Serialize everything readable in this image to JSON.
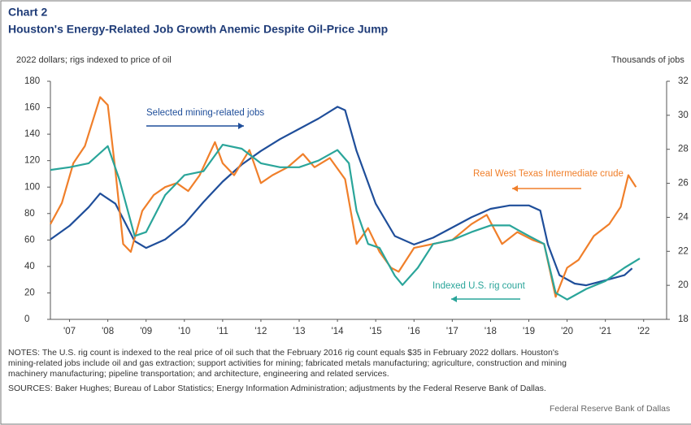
{
  "chart_data": {
    "type": "line",
    "header": "Chart 2",
    "title": "Houston's Energy-Related Job Growth Anemic Despite Oil-Price Jump",
    "ylabel": "2022 dollars; rigs indexed to price of oil",
    "y2label": "Thousands of jobs",
    "xlim": [
      2007,
      2023.1
    ],
    "xticks": [
      {
        "value": 2007.5,
        "label": "'07"
      },
      {
        "value": 2008.5,
        "label": "'08"
      },
      {
        "value": 2009.5,
        "label": "'09"
      },
      {
        "value": 2010.5,
        "label": "'10"
      },
      {
        "value": 2011.5,
        "label": "'11"
      },
      {
        "value": 2012.5,
        "label": "'12"
      },
      {
        "value": 2013.5,
        "label": "'13"
      },
      {
        "value": 2014.5,
        "label": "'14"
      },
      {
        "value": 2015.5,
        "label": "'15"
      },
      {
        "value": 2016.5,
        "label": "'16"
      },
      {
        "value": 2017.5,
        "label": "'17"
      },
      {
        "value": 2018.5,
        "label": "'18"
      },
      {
        "value": 2019.5,
        "label": "'19"
      },
      {
        "value": 2020.5,
        "label": "'20"
      },
      {
        "value": 2021.5,
        "label": "'21"
      },
      {
        "value": 2022.5,
        "label": "'22"
      }
    ],
    "ylim": [
      0,
      180
    ],
    "yticks": [
      0,
      20,
      40,
      60,
      80,
      100,
      120,
      140,
      160,
      180
    ],
    "y2lim": [
      18,
      32
    ],
    "y2ticks": [
      18,
      20,
      22,
      24,
      26,
      28,
      30,
      32
    ],
    "series": [
      {
        "name": "Selected mining-related jobs",
        "color": "#1f4e9a",
        "axis": "y2",
        "x": [
          2007,
          2007.5,
          2008,
          2008.3,
          2008.7,
          2009.2,
          2009.5,
          2010,
          2010.5,
          2011,
          2011.5,
          2012,
          2012.5,
          2013,
          2013.5,
          2014,
          2014.5,
          2014.7,
          2015,
          2015.5,
          2016,
          2016.5,
          2017,
          2017.5,
          2018,
          2018.5,
          2019,
          2019.5,
          2019.8,
          2020,
          2020.3,
          2020.7,
          2021,
          2021.5,
          2022,
          2022.2
        ],
        "values": [
          22.7,
          23.5,
          24.6,
          25.4,
          24.8,
          22.6,
          22.2,
          22.7,
          23.6,
          24.9,
          26.1,
          27.1,
          27.9,
          28.6,
          29.2,
          29.8,
          30.5,
          30.3,
          27.9,
          24.8,
          22.9,
          22.4,
          22.8,
          23.4,
          24.0,
          24.5,
          24.7,
          24.7,
          24.4,
          22.4,
          20.6,
          20.1,
          20.0,
          20.3,
          20.6,
          21.0
        ]
      },
      {
        "name": "Real West Texas Intermediate crude",
        "color": "#f07f2a",
        "axis": "y",
        "x": [
          2007,
          2007.3,
          2007.6,
          2007.9,
          2008.3,
          2008.5,
          2008.7,
          2008.9,
          2009.1,
          2009.4,
          2009.7,
          2010,
          2010.3,
          2010.6,
          2010.9,
          2011.3,
          2011.5,
          2011.8,
          2012.2,
          2012.5,
          2012.8,
          2013.2,
          2013.6,
          2013.9,
          2014.3,
          2014.7,
          2015,
          2015.3,
          2015.6,
          2015.9,
          2016.1,
          2016.5,
          2017,
          2017.5,
          2018,
          2018.4,
          2018.8,
          2019.2,
          2019.6,
          2019.9,
          2020.2,
          2020.5,
          2020.8,
          2021.2,
          2021.6,
          2021.9,
          2022.1,
          2022.3
        ],
        "values": [
          72,
          88,
          118,
          131,
          168,
          162,
          112,
          57,
          51,
          82,
          94,
          100,
          103,
          97,
          109,
          134,
          118,
          109,
          128,
          103,
          109,
          115,
          125,
          115,
          122,
          106,
          57,
          69,
          51,
          39,
          36,
          54,
          57,
          60,
          72,
          79,
          57,
          66,
          60,
          57,
          17,
          39,
          45,
          63,
          72,
          85,
          109,
          100
        ]
      },
      {
        "name": "Indexed U.S. rig count",
        "color": "#2aa59a",
        "axis": "y",
        "x": [
          2007,
          2007.5,
          2008,
          2008.5,
          2008.8,
          2009.2,
          2009.5,
          2010,
          2010.5,
          2011,
          2011.5,
          2012,
          2012.5,
          2013,
          2013.5,
          2014,
          2014.5,
          2014.8,
          2015,
          2015.3,
          2015.6,
          2016,
          2016.2,
          2016.6,
          2017,
          2017.5,
          2018,
          2018.5,
          2019,
          2019.5,
          2019.9,
          2020.2,
          2020.5,
          2021,
          2021.5,
          2022,
          2022.4
        ],
        "values": [
          113,
          115,
          118,
          131,
          106,
          63,
          66,
          94,
          109,
          112,
          132,
          129,
          118,
          115,
          115,
          120,
          128,
          118,
          82,
          57,
          54,
          33,
          26,
          39,
          57,
          60,
          66,
          71,
          71,
          63,
          57,
          20,
          15,
          23,
          29,
          39,
          46
        ]
      }
    ],
    "notes": [
      "NOTES: The U.S. rig count is indexed to the real price of oil such that the February 2016 rig count equals $35 in February 2022 dollars. Houston's",
      "mining-related jobs include oil and gas extraction; support activities for mining; fabricated metals manufacturing; agriculture, construction and mining",
      "machinery manufacturing; pipeline transportation; and architecture, engineering and related services."
    ],
    "sources": "SOURCES: Baker Hughes; Bureau of Labor Statistics; Energy Information Administration; adjustments by the Federal Reserve Bank of Dallas.",
    "credit": "Federal Reserve Bank of Dallas"
  }
}
